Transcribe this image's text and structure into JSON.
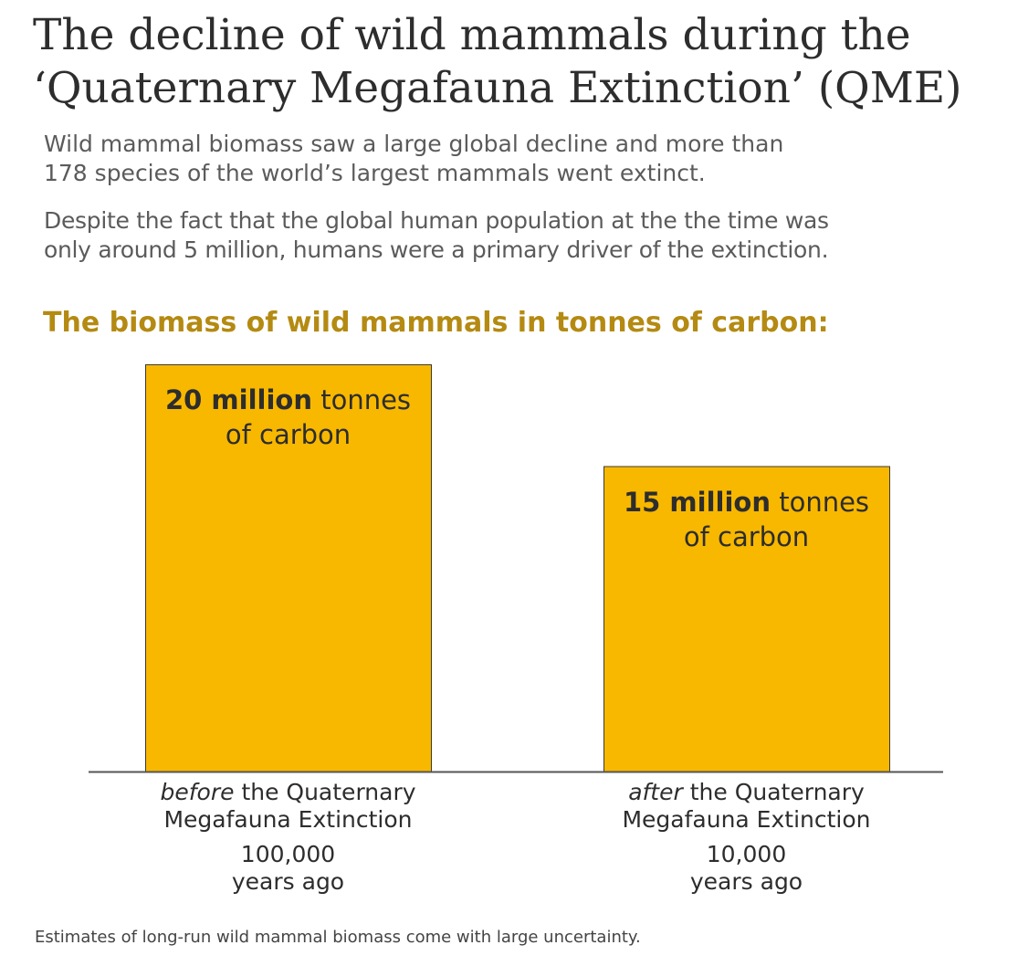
{
  "title": {
    "line1": "The decline of wild mammals during the",
    "line2": "‘Quaternary Megafauna Extinction’ (QME)"
  },
  "subtitle": {
    "p1_line1": "Wild mammal biomass saw a large global decline and more than",
    "p1_line2": "178 species of the world’s largest mammals went extinct.",
    "p2_line1": "Despite the fact that the global human population at the the time was",
    "p2_line2": "only around 5 million, humans were a primary driver of the extinction."
  },
  "footnote": "Estimates of long-run wild mammal biomass come with large uncertainty.",
  "colors": {
    "bar": "#f8b800",
    "bar_stroke": "#3a3a3a",
    "axis": "#555555",
    "chart_title": "#b48a12"
  },
  "chart_data": {
    "type": "bar",
    "title": "The biomass of wild mammals in tonnes of carbon:",
    "unit": "million tonnes of carbon",
    "ylim": [
      0,
      20
    ],
    "grid": false,
    "categories": [
      {
        "emph": "before",
        "rest": "the Quaternary",
        "line2": "Megafauna Extinction",
        "years_line1": "100,000",
        "years_line2": "years ago"
      },
      {
        "emph": "after",
        "rest": "the Quaternary",
        "line2": "Megafauna Extinction",
        "years_line1": "10,000",
        "years_line2": "years ago"
      }
    ],
    "values": [
      20,
      15
    ],
    "data_labels": [
      {
        "bold": "20 million",
        "rest": "tonnes",
        "line2": "of carbon"
      },
      {
        "bold": "15 million",
        "rest": "tonnes",
        "line2": "of carbon"
      }
    ]
  }
}
